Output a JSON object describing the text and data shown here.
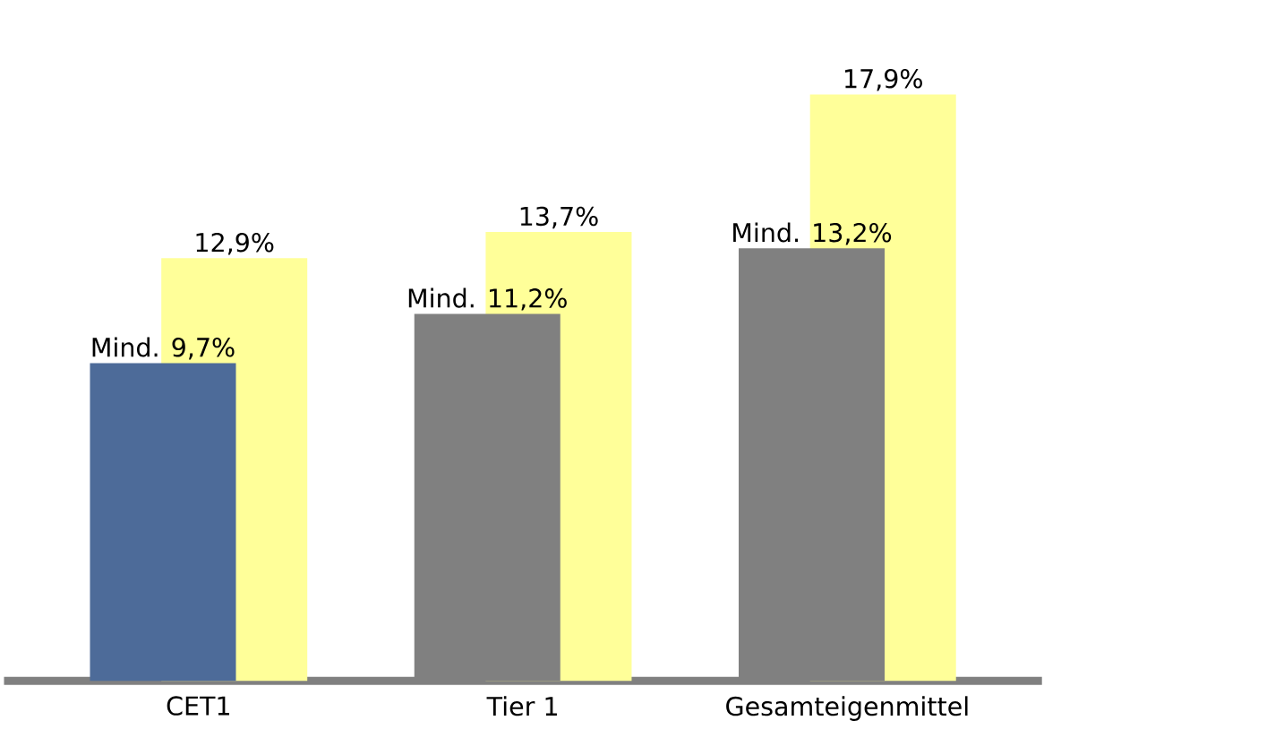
{
  "chart_data": {
    "type": "bar",
    "categories": [
      "CET1",
      "Tier 1",
      "Gesamteigenmittel"
    ],
    "series": [
      {
        "color": "#ffff99",
        "values": [
          12.9,
          13.7,
          17.9
        ],
        "value_labels": [
          "12,9%",
          "13,7%",
          "17,9%"
        ]
      },
      {
        "colors": [
          "#4d6b99",
          "#808080",
          "#808080"
        ],
        "values": [
          9.7,
          11.2,
          13.2
        ],
        "value_labels": [
          "Mind. 9,7%",
          "Mind. 11,2%",
          "Mind. 13,2%"
        ]
      }
    ],
    "data_labels": false
  }
}
